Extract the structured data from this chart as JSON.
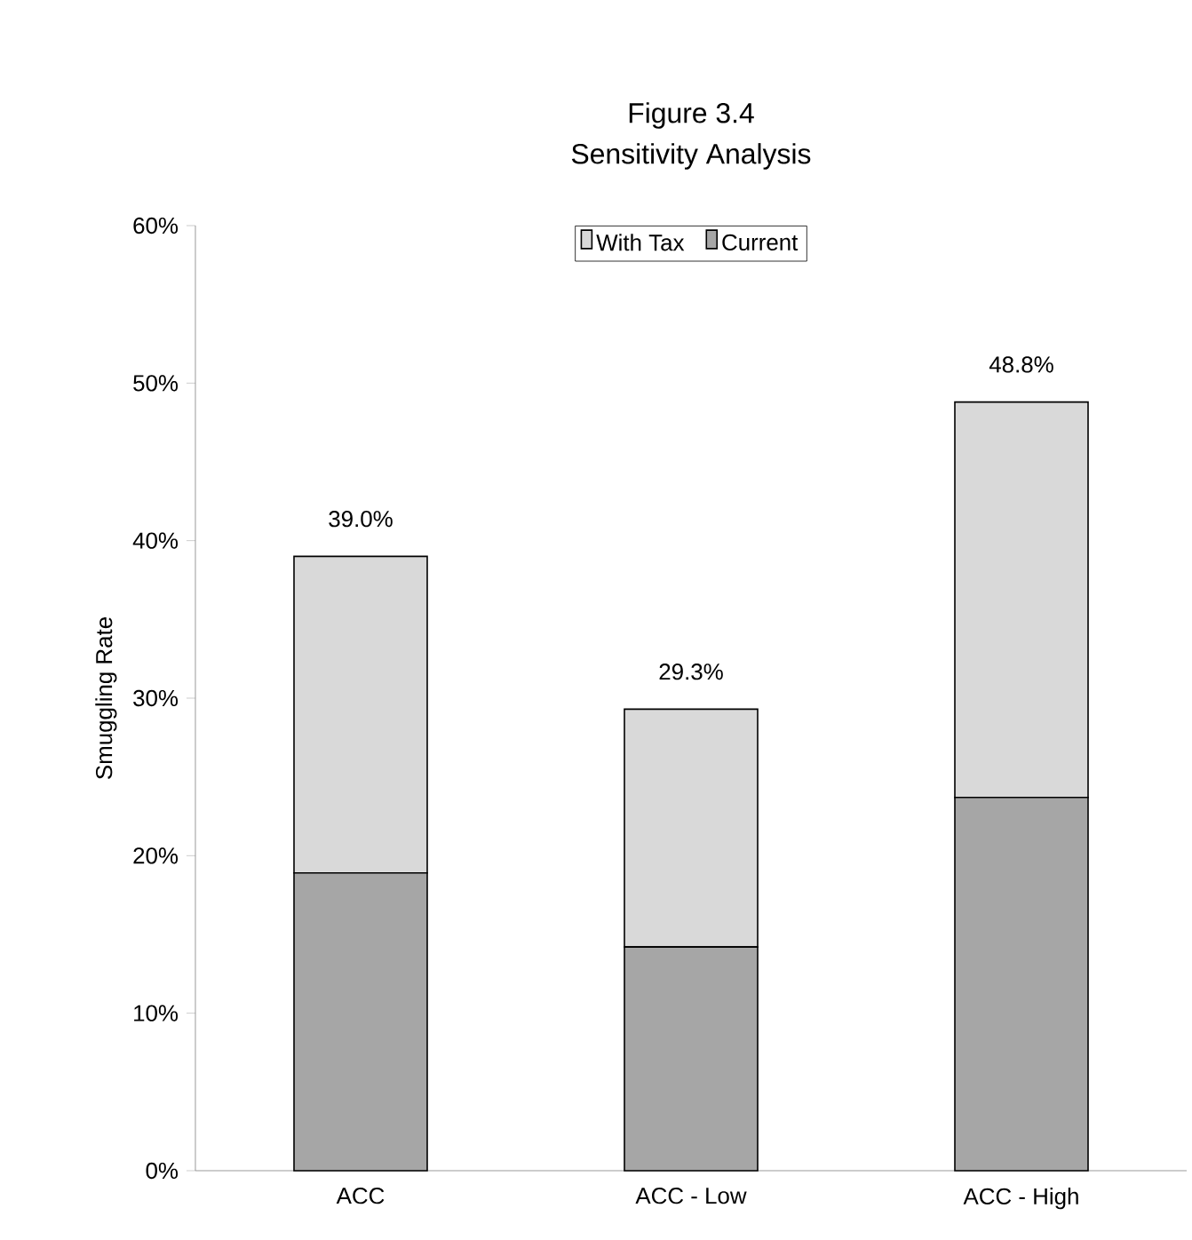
{
  "chart_data": {
    "type": "bar",
    "title": "Figure 3.4",
    "subtitle": "Sensitivity Analysis",
    "ylabel": "Smuggling Rate",
    "categories": [
      "ACC",
      "ACC - Low",
      "ACC - High"
    ],
    "stacked": true,
    "series": [
      {
        "name": "Current",
        "color": "#a6a6a6",
        "values": [
          18.9,
          14.2,
          23.7
        ]
      },
      {
        "name": "With Tax",
        "color": "#d9d9d9",
        "values": [
          20.1,
          15.1,
          25.1
        ]
      }
    ],
    "totals": [
      "39.0%",
      "29.3%",
      "48.8%"
    ],
    "ylim": [
      0,
      60
    ],
    "yticks": [
      {
        "value": 0,
        "label": "0%"
      },
      {
        "value": 10,
        "label": "10%"
      },
      {
        "value": 20,
        "label": "20%"
      },
      {
        "value": 30,
        "label": "30%"
      },
      {
        "value": 40,
        "label": "40%"
      },
      {
        "value": 50,
        "label": "50%"
      },
      {
        "value": 60,
        "label": "60%"
      }
    ],
    "grid": false,
    "legend": "top"
  }
}
